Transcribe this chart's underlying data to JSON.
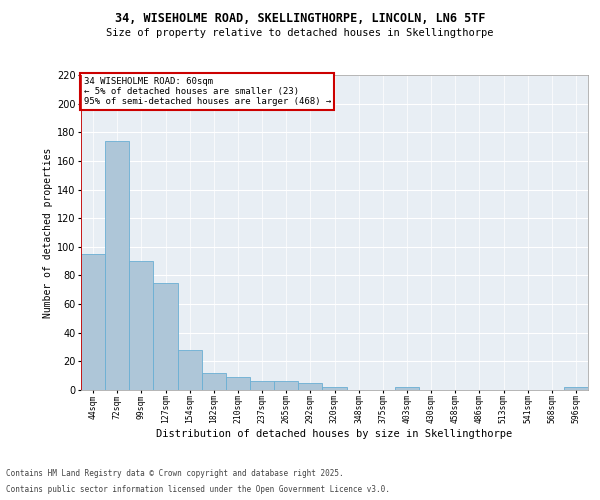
{
  "title_line1": "34, WISEHOLME ROAD, SKELLINGTHORPE, LINCOLN, LN6 5TF",
  "title_line2": "Size of property relative to detached houses in Skellingthorpe",
  "xlabel": "Distribution of detached houses by size in Skellingthorpe",
  "ylabel": "Number of detached properties",
  "categories": [
    "44sqm",
    "72sqm",
    "99sqm",
    "127sqm",
    "154sqm",
    "182sqm",
    "210sqm",
    "237sqm",
    "265sqm",
    "292sqm",
    "320sqm",
    "348sqm",
    "375sqm",
    "403sqm",
    "430sqm",
    "458sqm",
    "486sqm",
    "513sqm",
    "541sqm",
    "568sqm",
    "596sqm"
  ],
  "values": [
    95,
    174,
    90,
    75,
    28,
    12,
    9,
    6,
    6,
    5,
    2,
    0,
    0,
    2,
    0,
    0,
    0,
    0,
    0,
    0,
    2
  ],
  "bar_color": "#aec6d8",
  "bar_edgecolor": "#6aafd4",
  "ylim": [
    0,
    220
  ],
  "yticks": [
    0,
    20,
    40,
    60,
    80,
    100,
    120,
    140,
    160,
    180,
    200,
    220
  ],
  "annotation_title": "34 WISEHOLME ROAD: 60sqm",
  "annotation_line1": "← 5% of detached houses are smaller (23)",
  "annotation_line2": "95% of semi-detached houses are larger (468) →",
  "annotation_box_color": "#cc0000",
  "footer_line1": "Contains HM Land Registry data © Crown copyright and database right 2025.",
  "footer_line2": "Contains public sector information licensed under the Open Government Licence v3.0.",
  "bg_color": "#e8eef4",
  "grid_color": "#ffffff",
  "property_line_color": "#cc0000",
  "fig_width": 6.0,
  "fig_height": 5.0,
  "dpi": 100
}
